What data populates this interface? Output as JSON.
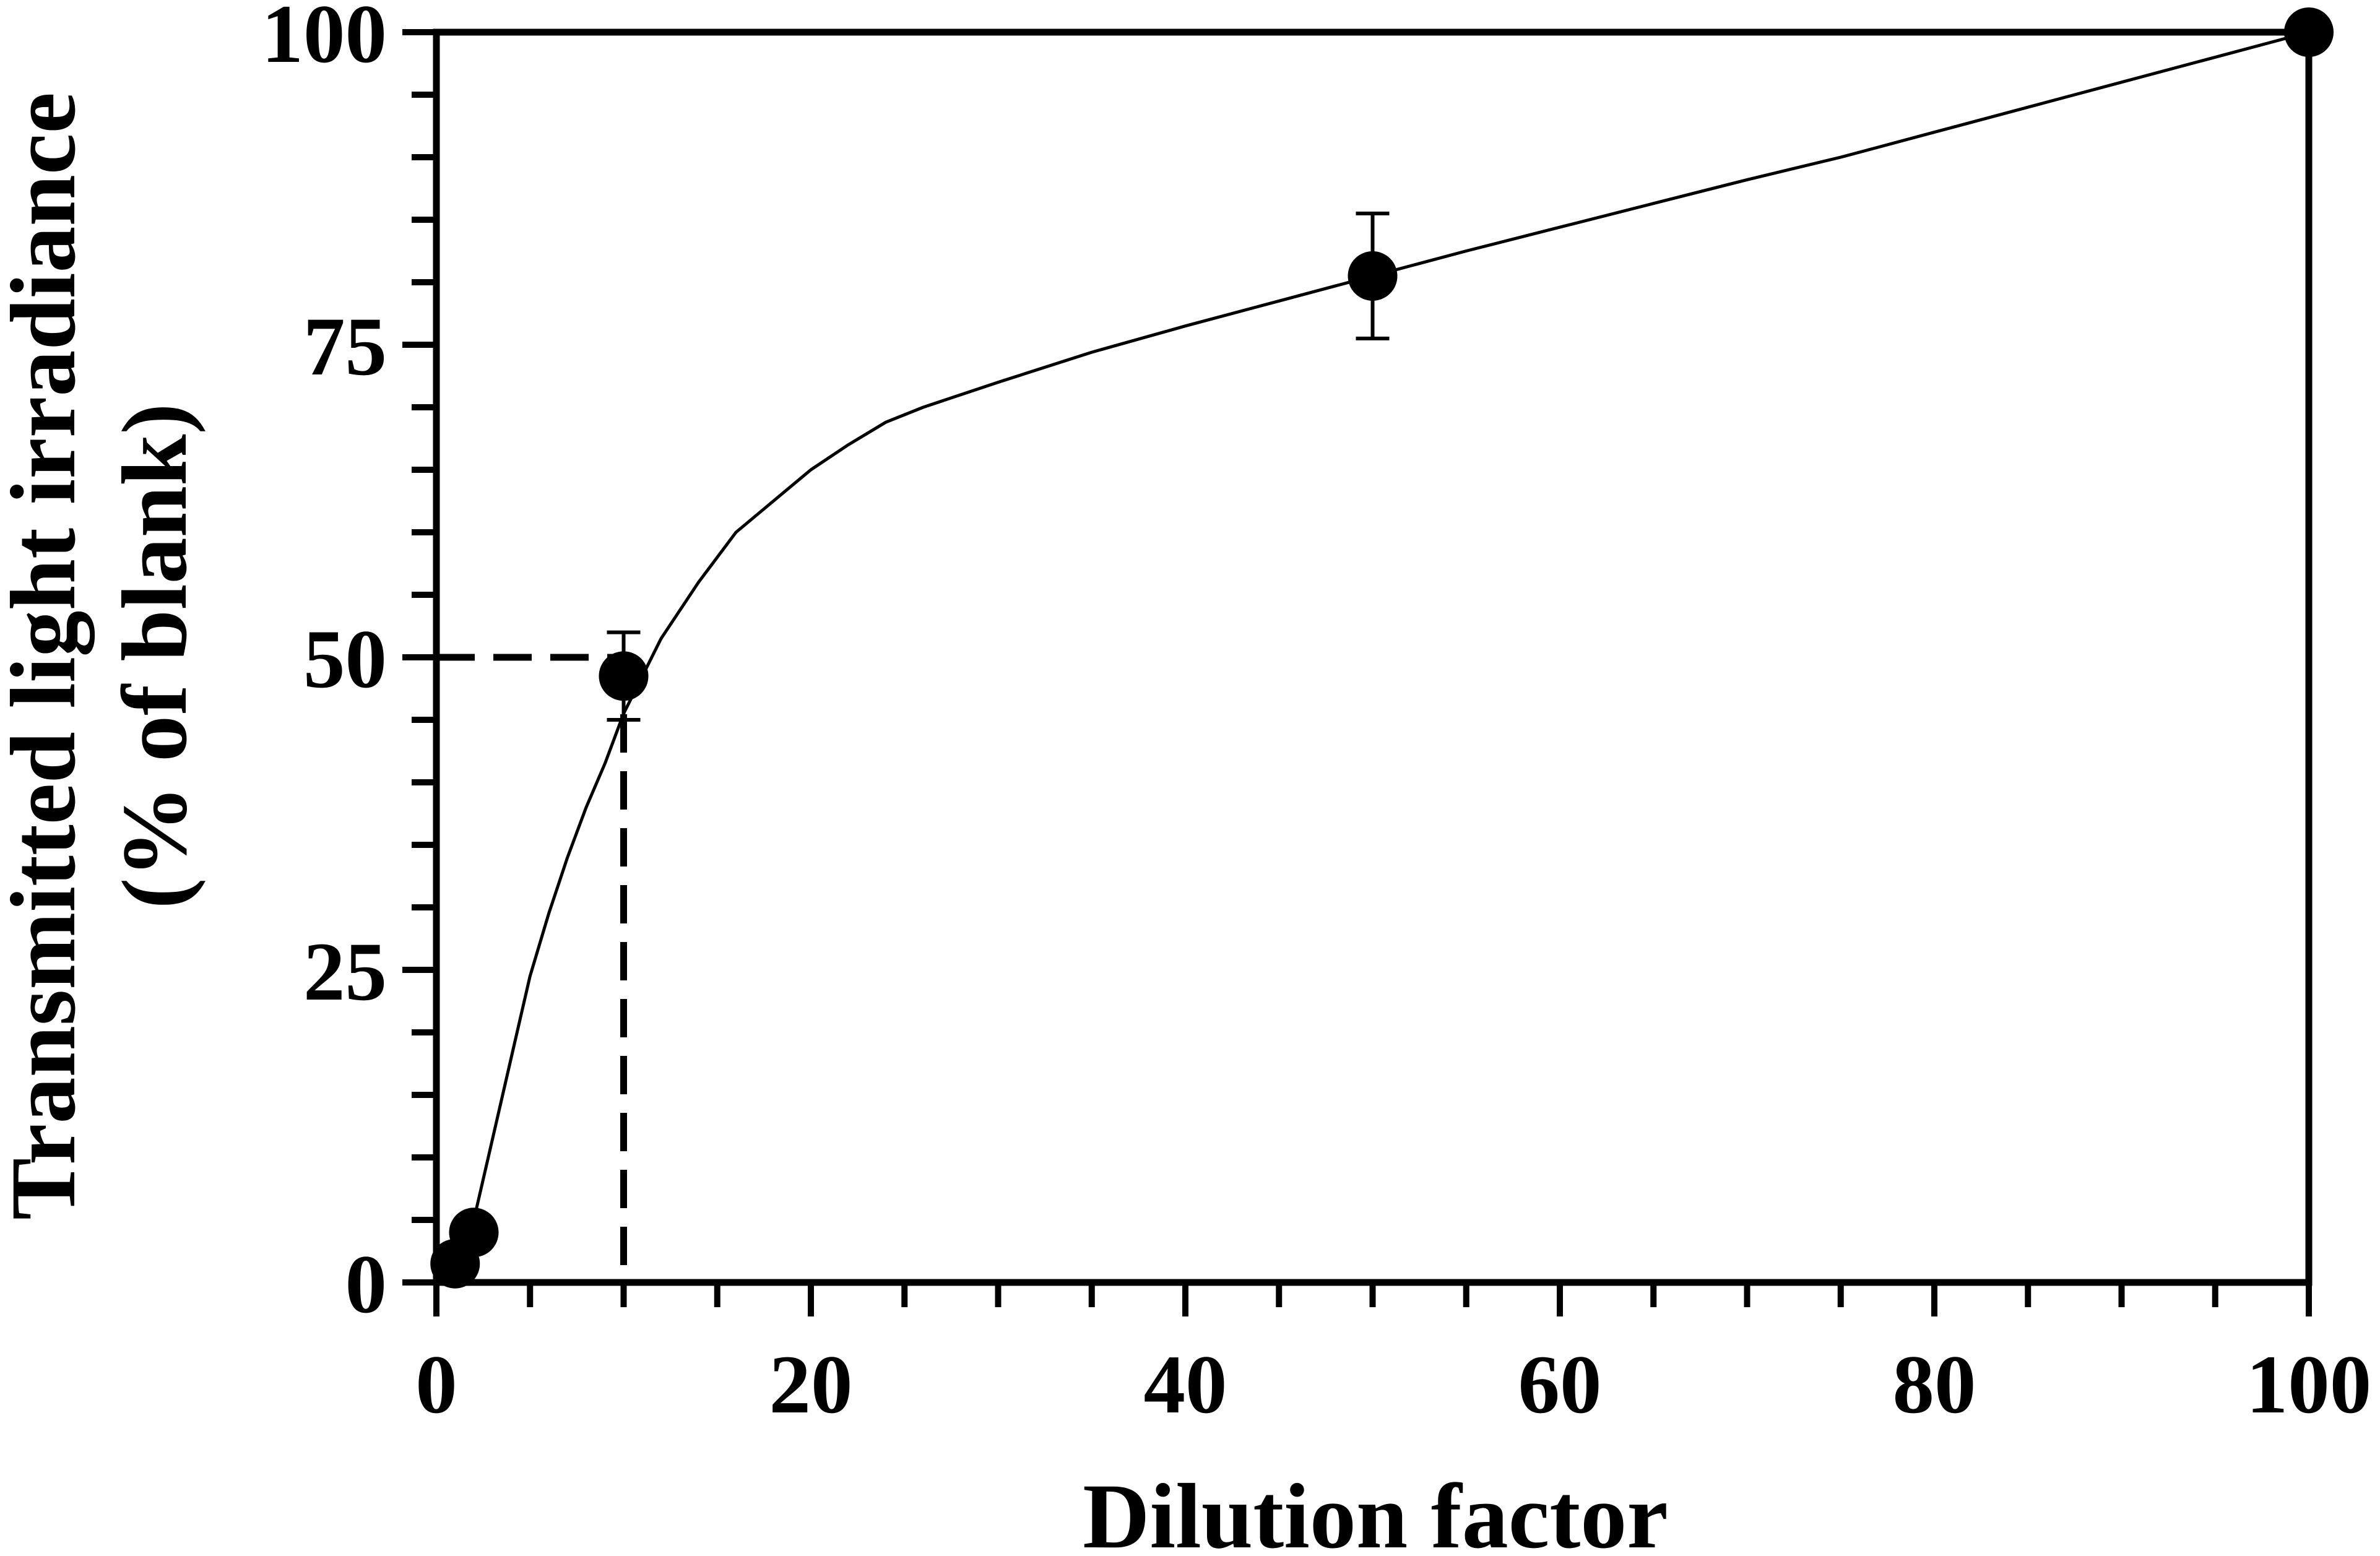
{
  "chart_data": {
    "type": "scatter",
    "title": "",
    "xlabel": "Dilution factor",
    "ylabel": [
      "Transmitted light irradiance",
      "(% of blank)"
    ],
    "xlim": [
      0,
      100
    ],
    "ylim": [
      0,
      100
    ],
    "x_ticks": [
      0,
      20,
      40,
      60,
      80,
      100
    ],
    "y_ticks": [
      0,
      25,
      50,
      75,
      100
    ],
    "x_minor_step": 5,
    "y_minor_step": 5,
    "grid": false,
    "legend": "none",
    "series": [
      {
        "points": [
          {
            "x": 1,
            "y": 1.5,
            "err": 0
          },
          {
            "x": 2,
            "y": 4,
            "err": 0
          },
          {
            "x": 10,
            "y": 48.5,
            "err": 3.5
          },
          {
            "x": 50,
            "y": 80.5,
            "err": 5
          },
          {
            "x": 100,
            "y": 100,
            "err": 0
          }
        ],
        "fit_curve": [
          [
            1,
            0
          ],
          [
            2,
            5
          ],
          [
            3,
            11.5
          ],
          [
            4,
            18
          ],
          [
            5,
            24.5
          ],
          [
            6,
            29.5
          ],
          [
            7,
            34
          ],
          [
            8,
            38
          ],
          [
            9,
            41.5
          ],
          [
            10,
            45.5
          ],
          [
            11,
            48.5
          ],
          [
            12,
            51.5
          ],
          [
            14,
            56
          ],
          [
            16,
            60
          ],
          [
            18,
            62.5
          ],
          [
            20,
            65
          ],
          [
            22,
            67
          ],
          [
            24,
            68.8
          ],
          [
            26,
            70
          ],
          [
            30,
            72
          ],
          [
            35,
            74.4
          ],
          [
            40,
            76.5
          ],
          [
            45,
            78.5
          ],
          [
            50,
            80.5
          ],
          [
            55,
            82.5
          ],
          [
            60,
            84.4
          ],
          [
            65,
            86.3
          ],
          [
            70,
            88.2
          ],
          [
            75,
            90
          ],
          [
            80,
            92
          ],
          [
            85,
            94
          ],
          [
            90,
            96
          ],
          [
            95,
            98
          ],
          [
            100,
            100
          ]
        ]
      }
    ],
    "annotation": {
      "type": "dashed-guide",
      "x": 10,
      "y": 50
    },
    "colors": {
      "ink": "#000000",
      "background": "#ffffff"
    }
  }
}
